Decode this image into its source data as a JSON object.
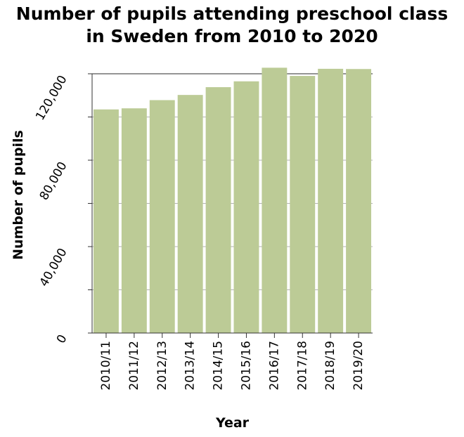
{
  "chart_data": {
    "type": "bar",
    "title_lines": [
      "Number of pupils attending preschool class",
      "in Sweden from 2010 to 2020"
    ],
    "xlabel": "Year",
    "ylabel": "Number of pupils",
    "categories": [
      "2010/11",
      "2011/12",
      "2012/13",
      "2013/14",
      "2014/15",
      "2015/16",
      "2016/17",
      "2017/18",
      "2018/19",
      "2019/20"
    ],
    "values": [
      103500,
      104000,
      107800,
      110200,
      113800,
      116500,
      122800,
      119000,
      122300,
      122200
    ],
    "ylim": [
      0,
      120000
    ],
    "yticks": [
      0,
      20000,
      40000,
      60000,
      80000,
      100000,
      120000
    ],
    "ytick_labels": [
      "0",
      "",
      "40,000",
      "",
      "80,000",
      "",
      "120,000"
    ],
    "bar_color": "#bccb96",
    "grid": true
  }
}
